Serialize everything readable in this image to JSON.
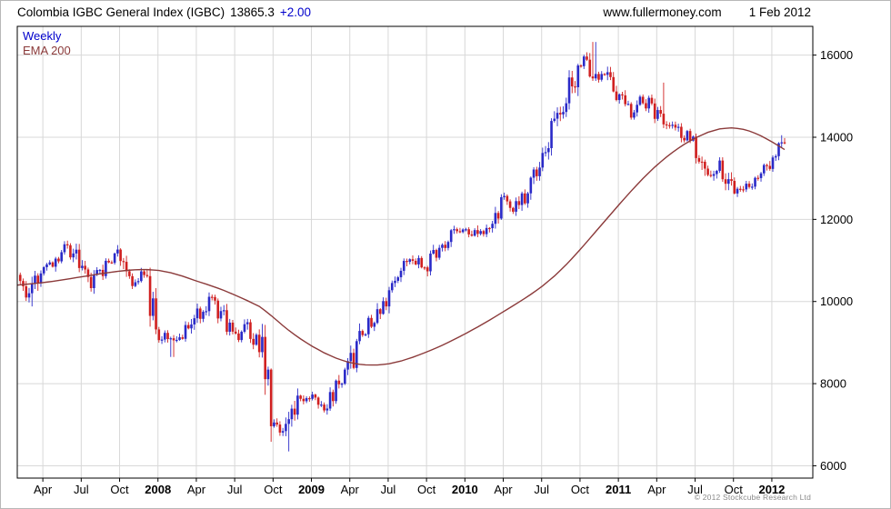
{
  "header": {
    "title": "Colombia IGBC General Index (IGBC)",
    "price": "13865.3",
    "change": "+2.00",
    "site": "www.fullermoney.com",
    "date": "1 Feb 2012"
  },
  "legend": {
    "weekly": "Weekly",
    "ema": "EMA 200"
  },
  "footer": {
    "copyright": "© 2012 Stockcube Research Ltd"
  },
  "colors": {
    "up": "#2a2ac8",
    "down": "#d02020",
    "ema": "#8b3a3a",
    "grid": "#d8d8d8",
    "frame": "#000000",
    "text": "#000000",
    "change": "#0000cc",
    "legend_weekly": "#0000cc",
    "legend_ema": "#8b3a3a"
  },
  "chart_data": {
    "type": "candlestick+line",
    "title": "Colombia IGBC General Index (IGBC)",
    "timeframe": "Weekly",
    "overlay": "EMA 200",
    "last_price": 13865.3,
    "last_change": 2.0,
    "start_month": "2007-02",
    "end_month": "2012-02",
    "ylim": [
      5700,
      16700
    ],
    "y_ticks": [
      6000,
      8000,
      10000,
      12000,
      14000,
      16000
    ],
    "x_ticks": [
      {
        "label": "Apr",
        "m": 2
      },
      {
        "label": "Jul",
        "m": 5
      },
      {
        "label": "Oct",
        "m": 8
      },
      {
        "label": "2008",
        "m": 11
      },
      {
        "label": "Apr",
        "m": 14
      },
      {
        "label": "Jul",
        "m": 17
      },
      {
        "label": "Oct",
        "m": 20
      },
      {
        "label": "2009",
        "m": 23
      },
      {
        "label": "Apr",
        "m": 26
      },
      {
        "label": "Jul",
        "m": 29
      },
      {
        "label": "Oct",
        "m": 32
      },
      {
        "label": "2010",
        "m": 35
      },
      {
        "label": "Apr",
        "m": 38
      },
      {
        "label": "Jul",
        "m": 41
      },
      {
        "label": "Oct",
        "m": 44
      },
      {
        "label": "2011",
        "m": 47
      },
      {
        "label": "Apr",
        "m": 50
      },
      {
        "label": "Jul",
        "m": 53
      },
      {
        "label": "Oct",
        "m": 56
      },
      {
        "label": "2012",
        "m": 59
      }
    ],
    "monthly_closes": [
      10650,
      10150,
      10850,
      10950,
      11350,
      10850,
      10400,
      10950,
      11250,
      10500,
      10650,
      9200,
      9050,
      9250,
      9650,
      10000,
      9650,
      9100,
      9400,
      8900,
      7000,
      6800,
      7550,
      7650,
      7500,
      7900,
      8400,
      9300,
      9600,
      10100,
      10750,
      11050,
      10900,
      11250,
      11600,
      11800,
      11650,
      11950,
      12450,
      12250,
      12700,
      13400,
      14250,
      14950,
      15900,
      15500,
      15450,
      15000,
      14650,
      14950,
      14550,
      14350,
      14100,
      13900,
      13000,
      13300,
      12700,
      12800,
      12950,
      13450,
      13865
    ],
    "ema_monthly": [
      10400,
      10430,
      10460,
      10500,
      10550,
      10600,
      10650,
      10700,
      10740,
      10770,
      10780,
      10760,
      10700,
      10610,
      10500,
      10400,
      10290,
      10160,
      10020,
      9870,
      9620,
      9350,
      9120,
      8920,
      8750,
      8610,
      8510,
      8460,
      8450,
      8480,
      8550,
      8650,
      8770,
      8900,
      9050,
      9210,
      9380,
      9560,
      9750,
      9940,
      10140,
      10360,
      10620,
      10920,
      11260,
      11620,
      11980,
      12340,
      12690,
      13020,
      13320,
      13580,
      13800,
      13980,
      14120,
      14210,
      14230,
      14180,
      14060,
      13890,
      13700
    ],
    "spikes": [
      {
        "m": 1.2,
        "low": 9880
      },
      {
        "m": 12.1,
        "low": 8650
      },
      {
        "m": 21.2,
        "low": 6350
      },
      {
        "m": 44.7,
        "high": 16050
      },
      {
        "m": 45.1,
        "high": 16320
      },
      {
        "m": 50.6,
        "high": 15330
      },
      {
        "m": 59.8,
        "high": 14050
      }
    ],
    "weeks_per_month": 4.3333,
    "seed": 20120201
  }
}
